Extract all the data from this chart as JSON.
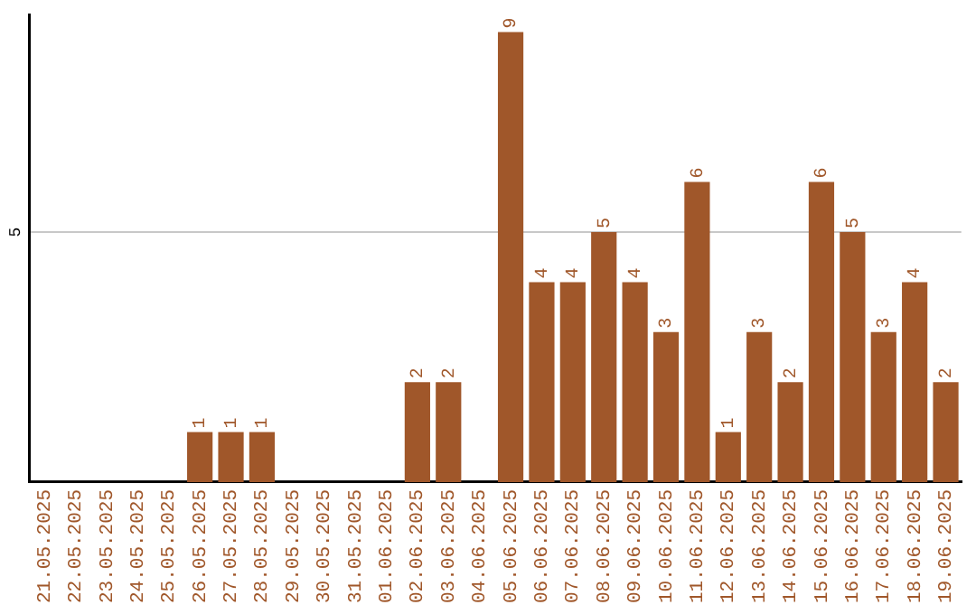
{
  "chart_data": {
    "type": "bar",
    "categories": [
      "21.05.2025",
      "22.05.2025",
      "23.05.2025",
      "24.05.2025",
      "25.05.2025",
      "26.05.2025",
      "27.05.2025",
      "28.05.2025",
      "29.05.2025",
      "30.05.2025",
      "31.05.2025",
      "01.06.2025",
      "02.06.2025",
      "03.06.2025",
      "04.06.2025",
      "05.06.2025",
      "06.06.2025",
      "07.06.2025",
      "08.06.2025",
      "09.06.2025",
      "10.06.2025",
      "11.06.2025",
      "12.06.2025",
      "13.06.2025",
      "14.06.2025",
      "15.06.2025",
      "16.06.2025",
      "17.06.2025",
      "18.06.2025",
      "19.06.2025"
    ],
    "values": [
      0,
      0,
      0,
      0,
      0,
      1,
      1,
      1,
      0,
      0,
      0,
      0,
      2,
      2,
      0,
      9,
      4,
      4,
      5,
      4,
      3,
      6,
      1,
      3,
      2,
      6,
      5,
      3,
      4,
      2
    ],
    "value_labels": [
      null,
      null,
      null,
      null,
      null,
      "1",
      "1",
      "1",
      null,
      null,
      null,
      null,
      "2",
      "2",
      null,
      "9",
      "4",
      "4",
      "5",
      "4",
      "3",
      "6",
      "1",
      "3",
      "2",
      "6",
      "5",
      "3",
      "4",
      "2"
    ],
    "color": "#a0572a",
    "ylim": [
      0,
      9.35
    ],
    "yticks": [
      5
    ],
    "grid": "y",
    "legend": false
  }
}
